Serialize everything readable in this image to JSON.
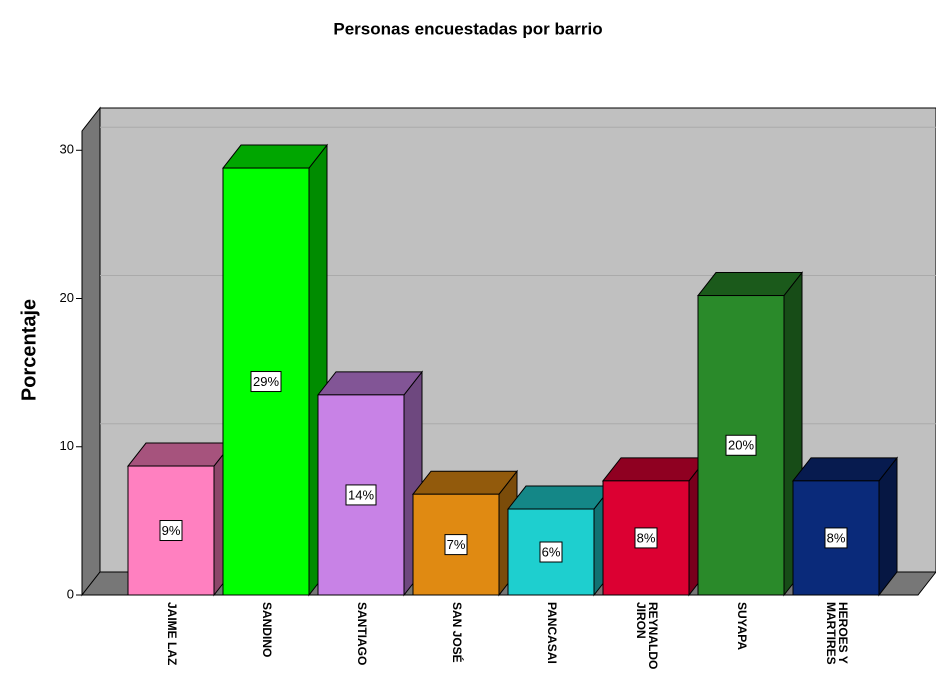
{
  "chart_data": {
    "type": "bar",
    "title": "Personas encuestadas por barrio",
    "y_label": "Porcentaje",
    "categories": [
      "JAIME LAZ",
      "SANDINO",
      "SANTIAGO",
      "SAN JOSÉ",
      "PANCASAI",
      "REYNALDO\nJIRON",
      "SUYAPA",
      "HEROES Y\nMARTIRES"
    ],
    "values": [
      8.7,
      28.8,
      13.5,
      6.8,
      5.8,
      7.7,
      20.2,
      7.7
    ],
    "value_labels": [
      "9%",
      "29%",
      "14%",
      "7%",
      "6%",
      "8%",
      "20%",
      "8%"
    ],
    "colors": [
      "#ff80c0",
      "#00ff00",
      "#c882e6",
      "#e08a12",
      "#1ecfcf",
      "#dc0032",
      "#2a8a2a",
      "#0a2a7a"
    ],
    "ylim": [
      0,
      31.3
    ],
    "yticks": [
      0,
      10,
      20,
      30
    ],
    "grid": true
  }
}
